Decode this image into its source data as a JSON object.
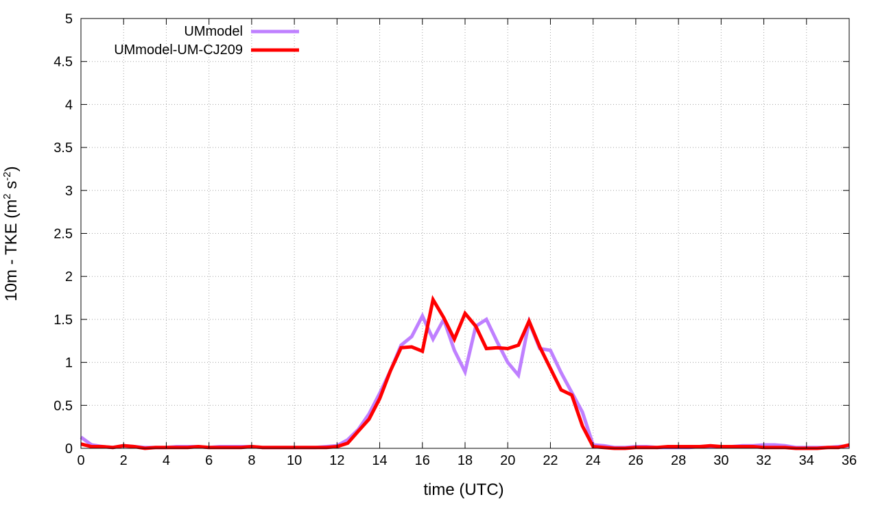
{
  "chart_data": {
    "type": "line",
    "xlabel": "time (UTC)",
    "ylabel": "10m - TKE (m",
    "ylabel_sup1": "2",
    "ylabel_mid": " s",
    "ylabel_sup2": "-2",
    "ylabel_end": ")",
    "xlim": [
      0,
      36
    ],
    "ylim": [
      0,
      5
    ],
    "x_ticks": [
      "0",
      "2",
      "4",
      "6",
      "8",
      "10",
      "12",
      "14",
      "16",
      "18",
      "20",
      "22",
      "24",
      "26",
      "28",
      "30",
      "32",
      "34",
      "36"
    ],
    "y_ticks": [
      "0",
      "0.5",
      "1",
      "1.5",
      "2",
      "2.5",
      "3",
      "3.5",
      "4",
      "4.5",
      "5"
    ],
    "grid": true,
    "legend_position": "top-left",
    "series": [
      {
        "name": "UMmodel",
        "color": "#bf80ff",
        "x": [
          0,
          0.5,
          1,
          1.5,
          2,
          2.5,
          3,
          3.5,
          4,
          4.5,
          5,
          5.5,
          6,
          6.5,
          7,
          7.5,
          8,
          8.5,
          9,
          9.5,
          10,
          10.5,
          11,
          11.5,
          12,
          12.5,
          13,
          13.5,
          14,
          14.5,
          15,
          15.5,
          16,
          16.5,
          17,
          17.5,
          18,
          18.5,
          19,
          19.5,
          20,
          20.5,
          21,
          21.5,
          22,
          22.5,
          23,
          23.5,
          24,
          24.5,
          25,
          25.5,
          26,
          26.5,
          27,
          27.5,
          28,
          28.5,
          29,
          29.5,
          30,
          30.5,
          31,
          31.5,
          32,
          32.5,
          33,
          33.5,
          34,
          34.5,
          35,
          35.5,
          36
        ],
        "values": [
          0.13,
          0.04,
          0.02,
          0.01,
          0.03,
          0.02,
          0.01,
          0.01,
          0.01,
          0.02,
          0.02,
          0.02,
          0.01,
          0.02,
          0.02,
          0.02,
          0.02,
          0.01,
          0.01,
          0.01,
          0.01,
          0.01,
          0.01,
          0.02,
          0.03,
          0.1,
          0.22,
          0.4,
          0.64,
          0.9,
          1.2,
          1.3,
          1.54,
          1.27,
          1.5,
          1.14,
          0.89,
          1.42,
          1.5,
          1.24,
          1.0,
          0.85,
          1.47,
          1.16,
          1.14,
          0.88,
          0.65,
          0.42,
          0.04,
          0.03,
          0.01,
          0.01,
          0.02,
          0.02,
          0.01,
          0.01,
          0.01,
          0.01,
          0.02,
          0.02,
          0.02,
          0.02,
          0.03,
          0.03,
          0.04,
          0.04,
          0.03,
          0.01,
          0.01,
          0.01,
          0.01,
          0.02,
          0.03
        ]
      },
      {
        "name": "UMmodel-UM-CJ209",
        "color": "#ff0000",
        "x": [
          0,
          0.5,
          1,
          1.5,
          2,
          2.5,
          3,
          3.5,
          4,
          4.5,
          5,
          5.5,
          6,
          6.5,
          7,
          7.5,
          8,
          8.5,
          9,
          9.5,
          10,
          10.5,
          11,
          11.5,
          12,
          12.5,
          13,
          13.5,
          14,
          14.5,
          15,
          15.5,
          16,
          16.5,
          17,
          17.5,
          18,
          18.5,
          19,
          19.5,
          20,
          20.5,
          21,
          21.5,
          22,
          22.5,
          23,
          23.5,
          24,
          24.5,
          25,
          25.5,
          26,
          26.5,
          27,
          27.5,
          28,
          28.5,
          29,
          29.5,
          30,
          30.5,
          31,
          31.5,
          32,
          32.5,
          33,
          33.5,
          34,
          34.5,
          35,
          35.5,
          36
        ],
        "values": [
          0.05,
          0.02,
          0.02,
          0.01,
          0.03,
          0.02,
          0.0,
          0.01,
          0.01,
          0.01,
          0.01,
          0.02,
          0.01,
          0.01,
          0.01,
          0.01,
          0.02,
          0.01,
          0.01,
          0.01,
          0.01,
          0.01,
          0.01,
          0.01,
          0.02,
          0.06,
          0.2,
          0.34,
          0.58,
          0.9,
          1.17,
          1.18,
          1.13,
          1.73,
          1.52,
          1.27,
          1.57,
          1.42,
          1.16,
          1.17,
          1.16,
          1.2,
          1.48,
          1.18,
          0.93,
          0.68,
          0.62,
          0.26,
          0.02,
          0.01,
          0.0,
          0.0,
          0.01,
          0.01,
          0.01,
          0.02,
          0.02,
          0.02,
          0.02,
          0.03,
          0.02,
          0.02,
          0.02,
          0.02,
          0.01,
          0.01,
          0.01,
          0.0,
          0.0,
          0.0,
          0.01,
          0.01,
          0.04
        ]
      }
    ]
  }
}
